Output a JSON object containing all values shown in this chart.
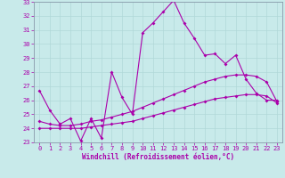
{
  "xlabel": "Windchill (Refroidissement éolien,°C)",
  "bg_color": "#c8eaea",
  "line_color": "#aa00aa",
  "grid_color": "#b0d8d8",
  "spine_color": "#8899aa",
  "xlim": [
    -0.5,
    23.5
  ],
  "ylim": [
    23,
    33
  ],
  "yticks": [
    23,
    24,
    25,
    26,
    27,
    28,
    29,
    30,
    31,
    32,
    33
  ],
  "xticks": [
    0,
    1,
    2,
    3,
    4,
    5,
    6,
    7,
    8,
    9,
    10,
    11,
    12,
    13,
    14,
    15,
    16,
    17,
    18,
    19,
    20,
    21,
    22,
    23
  ],
  "series": [
    {
      "x": [
        0,
        1,
        2,
        3,
        4,
        5,
        6,
        7,
        8,
        9,
        10,
        11,
        12,
        13,
        14,
        15,
        16,
        17,
        18,
        19,
        20,
        21,
        22,
        23
      ],
      "y": [
        26.7,
        25.3,
        24.3,
        24.7,
        23.1,
        24.7,
        23.3,
        28.0,
        26.2,
        25.0,
        30.8,
        31.5,
        32.3,
        33.1,
        31.5,
        30.4,
        29.2,
        29.3,
        28.6,
        29.2,
        27.5,
        26.5,
        26.0,
        26.0
      ]
    },
    {
      "x": [
        0,
        1,
        2,
        3,
        4,
        5,
        6,
        7,
        8,
        9,
        10,
        11,
        12,
        13,
        14,
        15,
        16,
        17,
        18,
        19,
        20,
        21,
        22,
        23
      ],
      "y": [
        24.5,
        24.3,
        24.2,
        24.2,
        24.3,
        24.5,
        24.6,
        24.8,
        25.0,
        25.2,
        25.5,
        25.8,
        26.1,
        26.4,
        26.7,
        27.0,
        27.3,
        27.5,
        27.7,
        27.8,
        27.8,
        27.7,
        27.3,
        25.9
      ]
    },
    {
      "x": [
        0,
        1,
        2,
        3,
        4,
        5,
        6,
        7,
        8,
        9,
        10,
        11,
        12,
        13,
        14,
        15,
        16,
        17,
        18,
        19,
        20,
        21,
        22,
        23
      ],
      "y": [
        24.0,
        24.0,
        24.0,
        24.0,
        24.0,
        24.1,
        24.2,
        24.3,
        24.4,
        24.5,
        24.7,
        24.9,
        25.1,
        25.3,
        25.5,
        25.7,
        25.9,
        26.1,
        26.2,
        26.3,
        26.4,
        26.4,
        26.3,
        25.8
      ]
    }
  ]
}
